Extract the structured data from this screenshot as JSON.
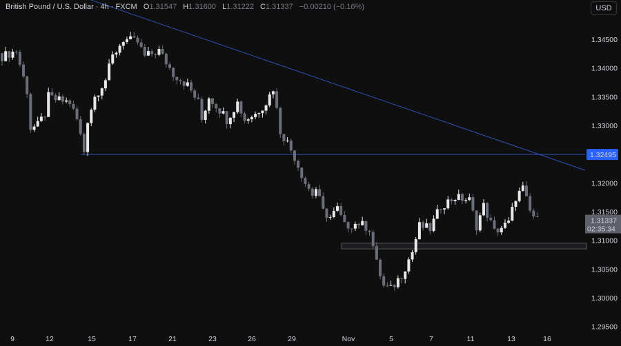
{
  "header": {
    "title": "British Pound / U.S. Dollar · 4h · FXCM",
    "o_label": "O",
    "o": "1.31547",
    "h_label": "H",
    "h": "1.31600",
    "l_label": "L",
    "l": "1.31222",
    "c_label": "C",
    "c": "1.31337",
    "change": "−0.00210 (−0.16%)"
  },
  "currency": "USD",
  "colors": {
    "bg": "#0f0f0f",
    "up": "#e8e8ea",
    "down": "#6b6e78",
    "line": "#2f4fb4",
    "label": "#2962ff",
    "box": "#5a5a5e"
  },
  "chart_data": {
    "type": "candlestick",
    "ylim": [
      1.2935,
      1.3505
    ],
    "price_ticks": [
      "1.34500",
      "1.34000",
      "1.33500",
      "1.33000",
      "1.32000",
      "1.31500",
      "1.31000",
      "1.30500",
      "1.30000",
      "1.29500"
    ],
    "date_ticks": [
      "9",
      "12",
      "15",
      "17",
      "21",
      "23",
      "26",
      "29",
      "Nov",
      "5",
      "7",
      "11",
      "13",
      "16"
    ],
    "horizontal_level": {
      "price": 1.32495,
      "label": "1.32495"
    },
    "current_price": {
      "label": "1.31337",
      "countdown": "02:35:34",
      "price": 1.31337
    },
    "support_zone": [
      1.3085,
      1.3095
    ],
    "trendline": [
      [
        1.352,
        0
      ],
      [
        1.3222,
        170
      ]
    ],
    "close_path": [
      [
        0,
        1.342
      ],
      [
        4,
        1.343
      ],
      [
        7,
        1.336
      ],
      [
        8,
        1.3295
      ],
      [
        10,
        1.33
      ],
      [
        12,
        1.332
      ],
      [
        13,
        1.335
      ],
      [
        15,
        1.3345
      ],
      [
        19,
        1.334
      ],
      [
        21,
        1.331
      ],
      [
        23,
        1.3255
      ],
      [
        24,
        1.331
      ],
      [
        26,
        1.335
      ],
      [
        29,
        1.338
      ],
      [
        31,
        1.342
      ],
      [
        34,
        1.345
      ],
      [
        38,
        1.3445
      ],
      [
        40,
        1.342
      ],
      [
        44,
        1.343
      ],
      [
        48,
        1.339
      ],
      [
        52,
        1.337
      ],
      [
        55,
        1.334
      ],
      [
        56,
        1.331
      ],
      [
        58,
        1.335
      ],
      [
        62,
        1.332
      ],
      [
        63,
        1.331
      ],
      [
        66,
        1.334
      ],
      [
        68,
        1.331
      ],
      [
        71,
        1.332
      ],
      [
        74,
        1.334
      ],
      [
        76,
        1.3365
      ],
      [
        78,
        1.329
      ],
      [
        80,
        1.327
      ],
      [
        82,
        1.3245
      ],
      [
        85,
        1.32
      ],
      [
        87,
        1.318
      ],
      [
        88,
        1.319
      ],
      [
        90,
        1.315
      ],
      [
        92,
        1.314
      ],
      [
        94,
        1.3155
      ],
      [
        96,
        1.3125
      ],
      [
        100,
        1.313
      ],
      [
        103,
        1.312
      ],
      [
        105,
        1.306
      ],
      [
        107,
        1.302
      ],
      [
        109,
        1.3015
      ],
      [
        112,
        1.304
      ],
      [
        115,
        1.308
      ],
      [
        117,
        1.3125
      ],
      [
        120,
        1.312
      ],
      [
        123,
        1.316
      ],
      [
        127,
        1.3175
      ],
      [
        131,
        1.317
      ],
      [
        133,
        1.3125
      ],
      [
        135,
        1.316
      ],
      [
        138,
        1.3115
      ],
      [
        142,
        1.313
      ],
      [
        144,
        1.3175
      ],
      [
        146,
        1.319
      ],
      [
        148,
        1.315
      ],
      [
        150,
        1.3134
      ]
    ]
  }
}
